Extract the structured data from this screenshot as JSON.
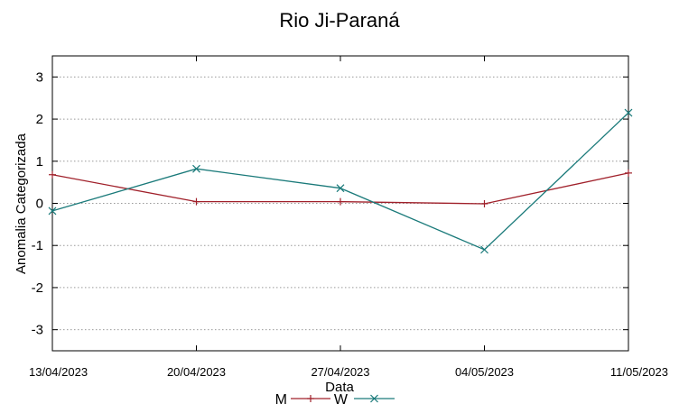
{
  "chart_data": {
    "type": "line",
    "title": "Rio Ji-Paraná",
    "xlabel": "Data",
    "ylabel": "Anomalia Categorizada",
    "categories": [
      "13/04/2023",
      "20/04/2023",
      "27/04/2023",
      "04/05/2023",
      "11/05/2023"
    ],
    "ylim": [
      -3.5,
      3.5
    ],
    "yticks": [
      -3,
      -2,
      -1,
      0,
      1,
      2,
      3
    ],
    "grid": "horizontal dotted",
    "legend_position": "bottom-center",
    "series": [
      {
        "name": "M",
        "values": [
          0.68,
          0.04,
          0.04,
          -0.01,
          0.72
        ],
        "color": "#a0202a",
        "marker": "plus"
      },
      {
        "name": "W",
        "values": [
          -0.18,
          0.82,
          0.36,
          -1.1,
          2.15
        ],
        "color": "#1a7a7a",
        "marker": "cross"
      }
    ]
  }
}
